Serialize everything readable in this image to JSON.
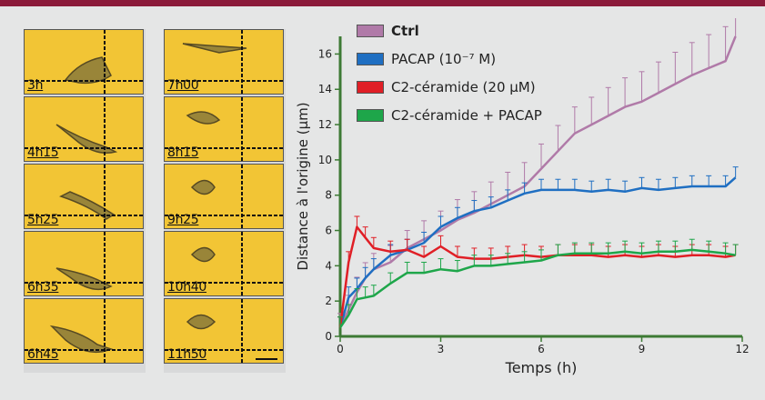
{
  "frames": {
    "left": [
      "3h",
      "4h15",
      "5h25",
      "6h35",
      "6h45"
    ],
    "right": [
      "7h00",
      "8h15",
      "9h25",
      "10h40",
      "11h50"
    ]
  },
  "legend": [
    {
      "label": "Ctrl",
      "color": "#b07aa8"
    },
    {
      "label": "PACAP (10⁻⁷ M)",
      "color": "#1f6fc2"
    },
    {
      "label": "C2-céramide (20 µM)",
      "color": "#e01f26"
    },
    {
      "label": "C2-céramide + PACAP",
      "color": "#1ea64a"
    }
  ],
  "chart_data": {
    "type": "line",
    "xlabel": "Temps (h)",
    "ylabel": "Distance à l'origine (µm)",
    "xlim": [
      0,
      12
    ],
    "ylim": [
      0,
      17
    ],
    "xticks": [
      0,
      3,
      6,
      9,
      12
    ],
    "yticks": [
      0,
      2,
      4,
      6,
      8,
      10,
      12,
      14,
      16
    ],
    "x": [
      0,
      0.25,
      0.5,
      0.75,
      1,
      1.5,
      2,
      2.5,
      3,
      3.5,
      4,
      4.5,
      5,
      5.5,
      6,
      6.5,
      7,
      7.5,
      8,
      8.5,
      9,
      9.5,
      10,
      10.5,
      11,
      11.5,
      11.8
    ],
    "series": [
      {
        "name": "Ctrl",
        "color": "#b07aa8",
        "values": [
          0.5,
          1.5,
          2.5,
          3.3,
          3.8,
          4.2,
          5,
          5.5,
          6,
          6.6,
          7,
          7.5,
          8,
          8.5,
          9.5,
          10.5,
          11.5,
          12,
          12.5,
          13,
          13.3,
          13.8,
          14.3,
          14.8,
          15.2,
          15.6,
          17
        ]
      },
      {
        "name": "PACAP (10⁻⁷ M)",
        "color": "#1f6fc2",
        "values": [
          0.5,
          2.2,
          2.7,
          3.3,
          3.8,
          4.6,
          4.9,
          5.3,
          6.2,
          6.7,
          7.1,
          7.3,
          7.7,
          8.1,
          8.3,
          8.3,
          8.3,
          8.2,
          8.3,
          8.2,
          8.4,
          8.3,
          8.4,
          8.5,
          8.5,
          8.5,
          9.0
        ]
      },
      {
        "name": "C2-céramide (20 µM)",
        "color": "#e01f26",
        "values": [
          0.5,
          4.2,
          6.2,
          5.6,
          5,
          4.8,
          4.9,
          4.5,
          5.1,
          4.5,
          4.4,
          4.4,
          4.5,
          4.6,
          4.5,
          4.6,
          4.6,
          4.6,
          4.5,
          4.6,
          4.5,
          4.6,
          4.5,
          4.6,
          4.6,
          4.5,
          4.6
        ]
      },
      {
        "name": "C2-céramide + PACAP",
        "color": "#1ea64a",
        "values": [
          0.5,
          1.2,
          2.1,
          2.2,
          2.3,
          3.0,
          3.6,
          3.6,
          3.8,
          3.7,
          4.0,
          4.0,
          4.1,
          4.2,
          4.3,
          4.6,
          4.7,
          4.7,
          4.7,
          4.8,
          4.7,
          4.8,
          4.8,
          4.9,
          4.8,
          4.7,
          4.6
        ]
      }
    ]
  }
}
